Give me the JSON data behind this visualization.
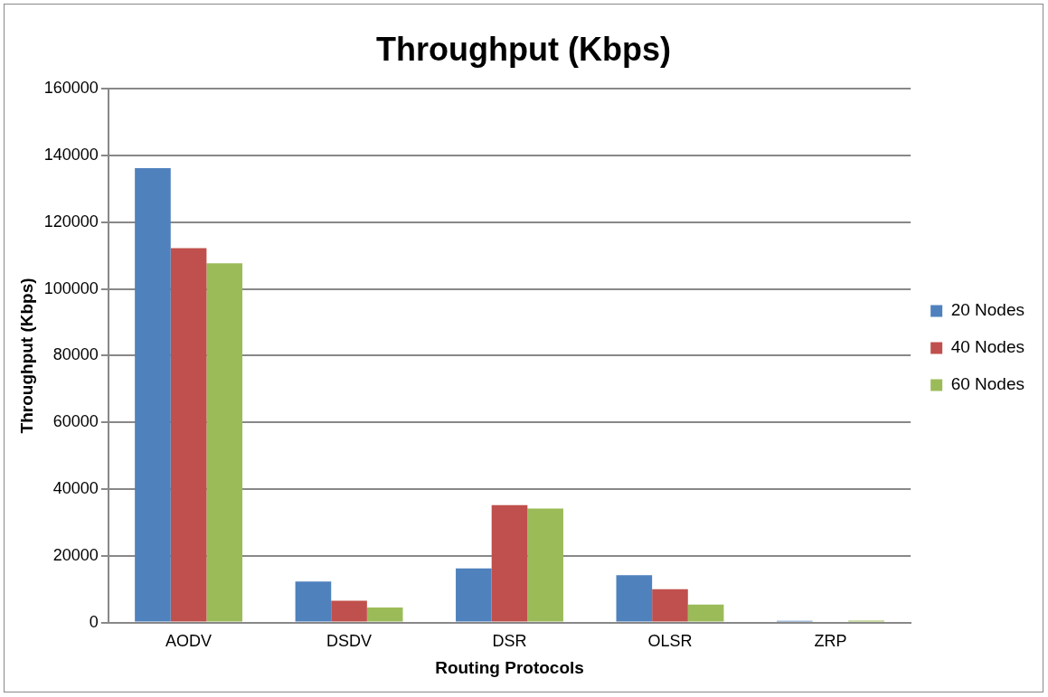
{
  "chart_data": {
    "type": "bar",
    "title": "Throughput (Kbps)",
    "xlabel": "Routing Protocols",
    "ylabel": "Throughput (Kbps)",
    "categories": [
      "AODV",
      "DSDV",
      "DSR",
      "OLSR",
      "ZRP"
    ],
    "series": [
      {
        "name": "20 Nodes",
        "color": "#4f81bd",
        "values": [
          136200,
          12300,
          16200,
          14200,
          500
        ]
      },
      {
        "name": "40 Nodes",
        "color": "#c0504d",
        "values": [
          112200,
          6500,
          35200,
          10000,
          300
        ]
      },
      {
        "name": "60 Nodes",
        "color": "#9bbb59",
        "values": [
          107700,
          4500,
          34200,
          5400,
          600
        ]
      }
    ],
    "ylim": [
      0,
      160000
    ],
    "yticks": [
      0,
      20000,
      40000,
      60000,
      80000,
      100000,
      120000,
      140000,
      160000
    ],
    "grid": "y",
    "legend": "right"
  }
}
